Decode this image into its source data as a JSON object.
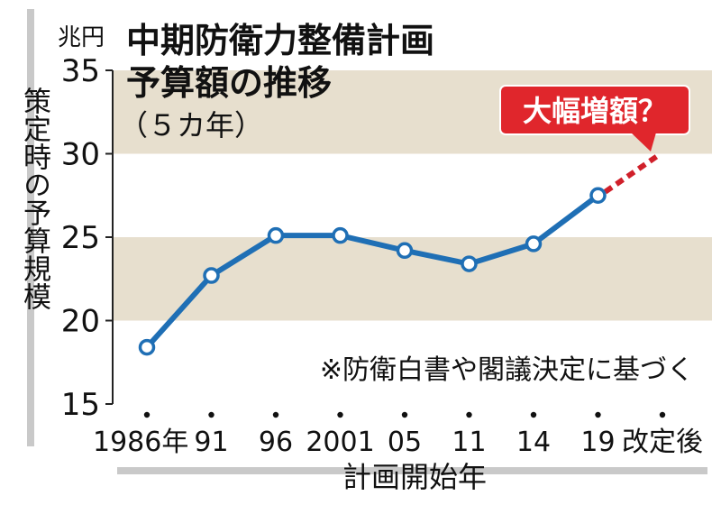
{
  "chart_data": {
    "type": "line",
    "title": "中期防衛力整備計画",
    "title_line2": "予算額の推移",
    "subtitle": "（５カ年）",
    "unit_label": "兆円",
    "ylabel": "策定時の予算規模",
    "xlabel": "計画開始年",
    "note": "※防衛白書や閣議決定に基づく",
    "callout": "大幅増額？",
    "categories": [
      "1986年",
      "91",
      "96",
      "2001",
      "05",
      "11",
      "14",
      "19",
      "改定後"
    ],
    "series": [
      {
        "values": [
          18.4,
          22.7,
          25.1,
          25.1,
          24.2,
          23.4,
          24.6,
          27.5,
          null
        ],
        "color": "#1f6fb5"
      }
    ],
    "projection": {
      "from_index": 7,
      "from_value": 27.5,
      "to_index": 8,
      "to_value": 30.0,
      "color": "#d0202a",
      "style": "dashed"
    },
    "ylim": [
      15,
      35
    ],
    "yticks": [
      15,
      20,
      25,
      30,
      35
    ],
    "bands": [
      {
        "from": 20,
        "to": 25,
        "color": "#e7dfce"
      },
      {
        "from": 30,
        "to": 35,
        "color": "#e7dfce"
      }
    ],
    "grid": false
  }
}
